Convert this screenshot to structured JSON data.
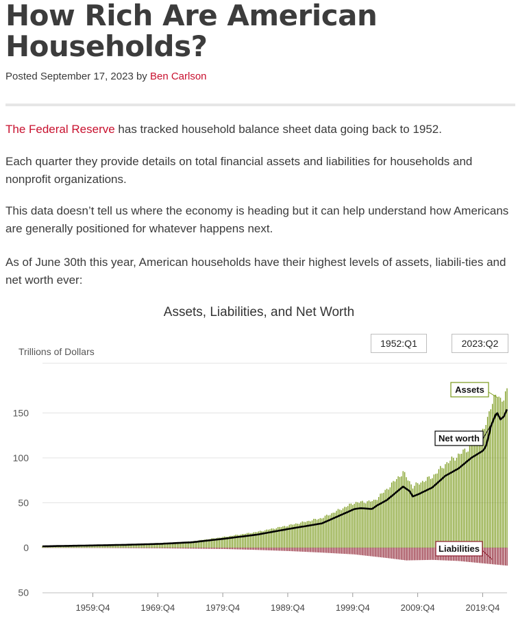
{
  "post": {
    "title": "How Rich Are American Households?",
    "posted_prefix": "Posted September 17, 2023 by ",
    "author": "Ben Carlson"
  },
  "body": {
    "p1_link": "The Federal Reserve",
    "p1_rest": " has tracked household balance sheet data going back to 1952.",
    "p2": "Each quarter they provide details on total financial assets and liabilities for households and nonprofit organizations.",
    "p3": "This data doesn’t tell us where the economy is heading but it can help understand how Americans are generally positioned for whatever happens next.",
    "p4": "As of June 30th this year, American households have their highest levels of assets, liabili-ties and net worth ever:"
  },
  "chart_data": {
    "type": "bar",
    "title": "Assets, Liabilities, and Net Worth",
    "ylabel": "Trillions of Dollars",
    "range_start": "1952:Q1",
    "range_end": "2023:Q2",
    "ylim": [
      -50,
      175
    ],
    "y_ticks": [
      {
        "value": 150,
        "label": "150"
      },
      {
        "value": 100,
        "label": "100"
      },
      {
        "value": 50,
        "label": "50"
      },
      {
        "value": 0,
        "label": "0"
      },
      {
        "value": -50,
        "label": "50"
      }
    ],
    "x_ticks": [
      "1959:Q4",
      "1969:Q4",
      "1979:Q4",
      "1989:Q4",
      "1999:Q4",
      "2009:Q4",
      "2019:Q4"
    ],
    "x_tick_years": [
      1959.75,
      1969.75,
      1979.75,
      1989.75,
      1999.75,
      2009.75,
      2019.75
    ],
    "grid": true,
    "legend": "inline callouts",
    "colors": {
      "assets": "#7a9a1a",
      "liabilities": "#8b1a2b",
      "net_worth": "#000000",
      "callout_assets_border": "#7a9a1a",
      "callout_liabilities_border": "#8b1a2b"
    },
    "labels": {
      "assets": "Assets",
      "net_worth": "Net worth",
      "liabilities": "Liabilities"
    },
    "series": [
      {
        "name": "Assets",
        "x": [
          1952,
          1955,
          1960,
          1965,
          1970,
          1975,
          1980,
          1985,
          1990,
          1995,
          2000,
          2003,
          2005,
          2007.5,
          2009,
          2010,
          2012,
          2014,
          2016,
          2018,
          2019.9,
          2020.5,
          2021,
          2022,
          2022.5,
          2023.5
        ],
        "values": [
          1.8,
          2.2,
          2.9,
          3.8,
          5,
          7,
          12,
          17.5,
          25,
          33,
          50,
          52,
          65,
          84,
          68,
          72,
          79,
          93,
          103,
          113,
          130,
          143,
          160,
          170,
          165,
          172
        ]
      },
      {
        "name": "Liabilities",
        "x": [
          1952,
          1960,
          1970,
          1980,
          1985,
          1990,
          1995,
          2000,
          2005,
          2008,
          2012,
          2016,
          2020,
          2023.5
        ],
        "values": [
          0.2,
          0.3,
          0.7,
          1.5,
          2.5,
          3.8,
          5.5,
          7.5,
          11.5,
          14.2,
          13.6,
          14.8,
          17.6,
          20
        ]
      },
      {
        "name": "Net worth",
        "x": [
          1952,
          1955,
          1960,
          1965,
          1970,
          1975,
          1980,
          1985,
          1990,
          1995,
          2000,
          2001,
          2002.7,
          2003.5,
          2005,
          2007.5,
          2008.5,
          2009,
          2010,
          2012,
          2014,
          2016,
          2018,
          2019.8,
          2020.2,
          2020.7,
          2021,
          2021.9,
          2022.5,
          2023,
          2023.5
        ],
        "values": [
          1.5,
          1.9,
          2.5,
          3.2,
          4.2,
          6,
          10,
          14.5,
          21,
          27,
          43,
          44,
          43,
          47,
          53,
          68,
          63,
          57,
          60,
          67,
          80,
          88,
          100,
          108,
          112,
          125,
          135,
          151,
          143,
          146,
          154
        ]
      }
    ]
  }
}
